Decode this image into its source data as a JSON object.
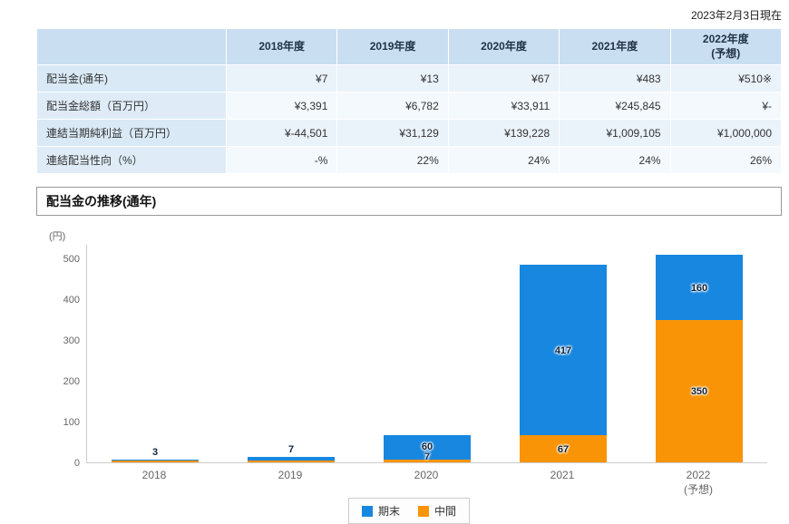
{
  "page": {
    "as_of": "2023年2月3日現在"
  },
  "table": {
    "col_headers": [
      "2018年度",
      "2019年度",
      "2020年度",
      "2021年度",
      "2022年度\n(予想)"
    ],
    "rows": [
      {
        "label": "配当金(通年)",
        "values": [
          "¥7",
          "¥13",
          "¥67",
          "¥483",
          "¥510※"
        ]
      },
      {
        "label": "配当金総額（百万円）",
        "values": [
          "¥3,391",
          "¥6,782",
          "¥33,911",
          "¥245,845",
          "¥-"
        ]
      },
      {
        "label": "連結当期純利益（百万円）",
        "values": [
          "¥-44,501",
          "¥31,129",
          "¥139,228",
          "¥1,009,105",
          "¥1,000,000"
        ]
      },
      {
        "label": "連結配当性向（%）",
        "values": [
          "-%",
          "22%",
          "24%",
          "24%",
          "26%"
        ]
      }
    ]
  },
  "section": {
    "title": "配当金の推移(通年)"
  },
  "chart_data": {
    "type": "bar",
    "stacked": true,
    "title": "配当金の推移(通年)",
    "ylabel": "(円)",
    "categories": [
      "2018",
      "2019",
      "2020",
      "2021",
      "2022\n(予想)"
    ],
    "series": [
      {
        "name": "期末",
        "color": "#1787e0",
        "values": [
          3,
          7,
          60,
          417,
          160
        ],
        "labels": [
          "3",
          "7",
          "60",
          "417",
          "160"
        ]
      },
      {
        "name": "中間",
        "color": "#f89406",
        "values": [
          4,
          6,
          7,
          67,
          350
        ],
        "labels": [
          "",
          "",
          "7",
          "67",
          "350"
        ]
      }
    ],
    "stack_bottom_to_top": [
      "中間",
      "期末"
    ],
    "yticks": [
      0,
      100,
      200,
      300,
      400,
      500
    ],
    "ylim": [
      0,
      540
    ],
    "grid": false,
    "legend_position": "bottom"
  }
}
